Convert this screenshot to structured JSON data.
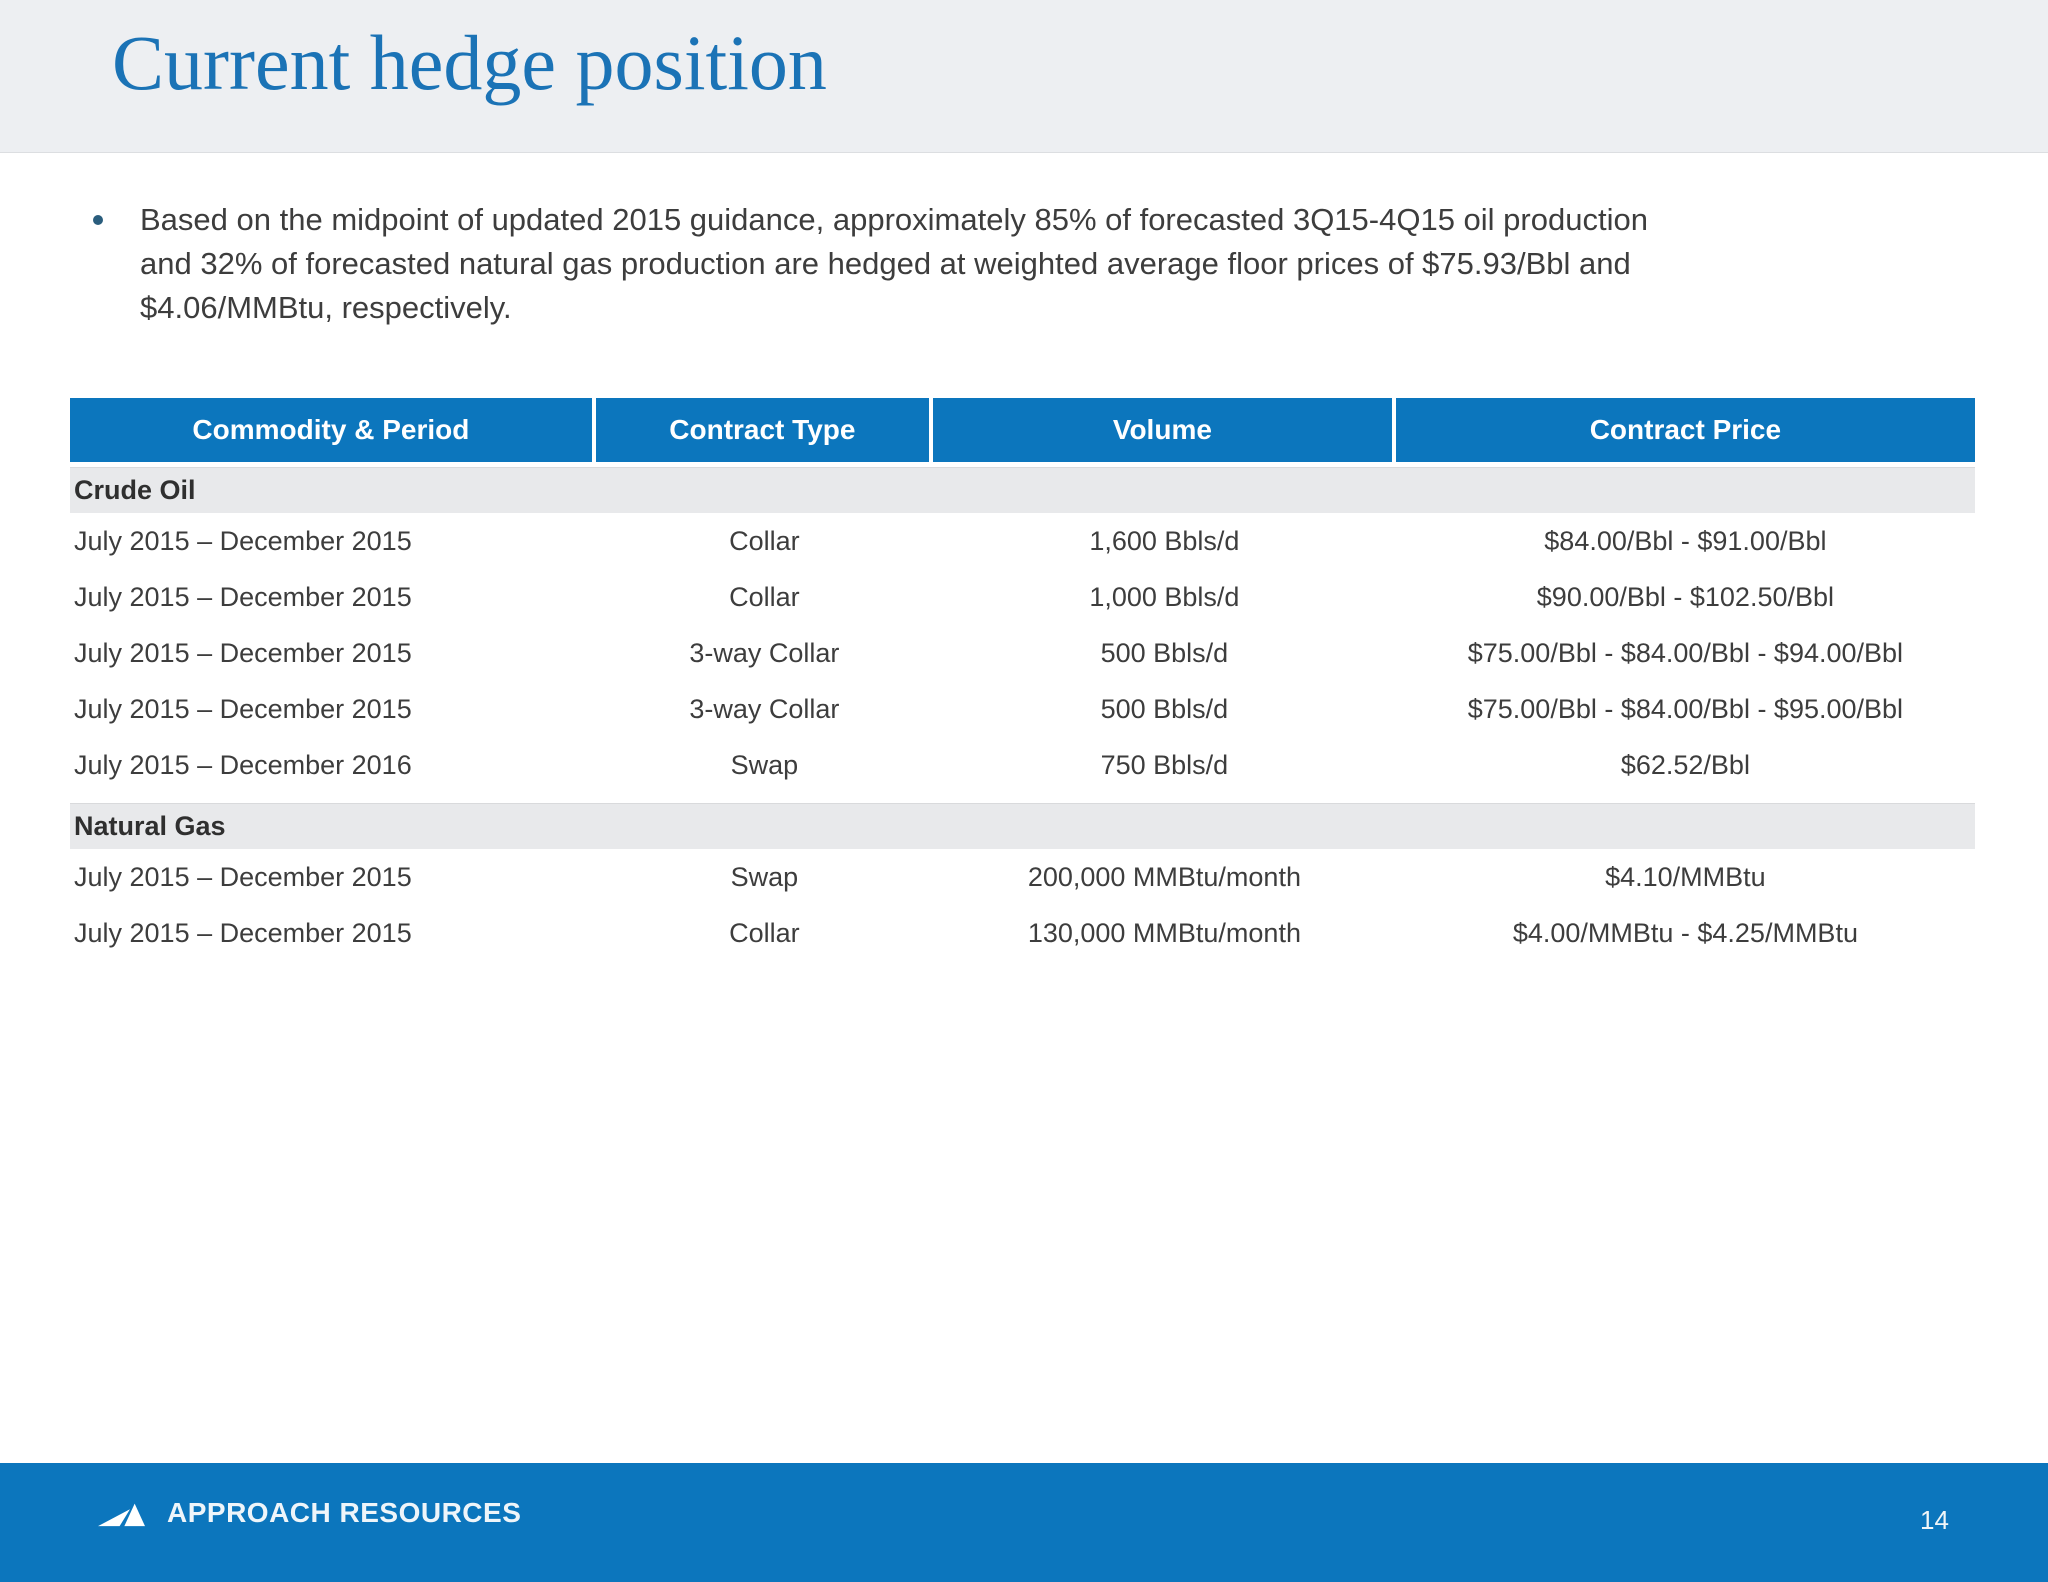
{
  "colors": {
    "accent_blue": "#0c76bd",
    "title_blue": "#1b73b6",
    "title_band_bg": "#edeff2",
    "section_band_bg": "#e8e9eb",
    "body_text": "#3d3d3d",
    "bullet_dot": "#2a5d7d"
  },
  "header": {
    "title": "Current hedge position"
  },
  "bullet": {
    "lines": [
      "Based on the midpoint of updated 2015 guidance, approximately 85% of forecasted 3Q15-4Q15 oil production",
      "and 32% of forecasted natural gas production are hedged at weighted average floor prices of $75.93/Bbl and",
      "$4.06/MMBtu, respectively."
    ]
  },
  "table": {
    "headers": [
      "Commodity & Period",
      "Contract Type",
      "Volume",
      "Contract Price"
    ],
    "sections": [
      {
        "name": "Crude Oil",
        "rows": [
          {
            "period": "July 2015 – December 2015",
            "contract_type": "Collar",
            "volume": "1,600 Bbls/d",
            "price": "$84.00/Bbl - $91.00/Bbl"
          },
          {
            "period": "July 2015 – December 2015",
            "contract_type": "Collar",
            "volume": "1,000 Bbls/d",
            "price": "$90.00/Bbl - $102.50/Bbl"
          },
          {
            "period": "July 2015 – December 2015",
            "contract_type": "3-way Collar",
            "volume": "500 Bbls/d",
            "price": "$75.00/Bbl - $84.00/Bbl - $94.00/Bbl"
          },
          {
            "period": "July 2015 – December 2015",
            "contract_type": "3-way Collar",
            "volume": "500 Bbls/d",
            "price": "$75.00/Bbl - $84.00/Bbl - $95.00/Bbl"
          },
          {
            "period": "July 2015 – December 2016",
            "contract_type": "Swap",
            "volume": "750 Bbls/d",
            "price": "$62.52/Bbl"
          }
        ]
      },
      {
        "name": "Natural Gas",
        "rows": [
          {
            "period": "July 2015 – December 2015",
            "contract_type": "Swap",
            "volume": "200,000 MMBtu/month",
            "price": "$4.10/MMBtu"
          },
          {
            "period": "July 2015 – December 2015",
            "contract_type": "Collar",
            "volume": "130,000 MMBtu/month",
            "price": "$4.00/MMBtu - $4.25/MMBtu"
          }
        ]
      }
    ]
  },
  "footer": {
    "brand": "APPROACH RESOURCES",
    "logo_icon": "mountain-logo",
    "page_number": "14"
  }
}
